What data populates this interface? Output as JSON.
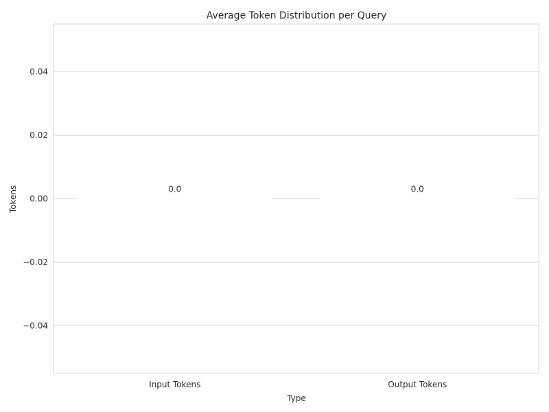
{
  "chart_data": {
    "type": "bar",
    "title": "Average Token Distribution per Query",
    "xlabel": "Type",
    "ylabel": "Tokens",
    "categories": [
      "Input Tokens",
      "Output Tokens"
    ],
    "values": [
      0.0,
      0.0
    ],
    "data_labels": [
      "0.0",
      "0.0"
    ],
    "ylim": [
      -0.055,
      0.055
    ],
    "yticks": [
      0.04,
      0.02,
      0.0,
      -0.02,
      -0.04
    ],
    "ytick_labels": [
      "0.04",
      "0.02",
      "0.00",
      "−0.02",
      "−0.04"
    ],
    "grid": true,
    "bar_colors": [
      "#4c72b0",
      "#dd8452"
    ]
  }
}
